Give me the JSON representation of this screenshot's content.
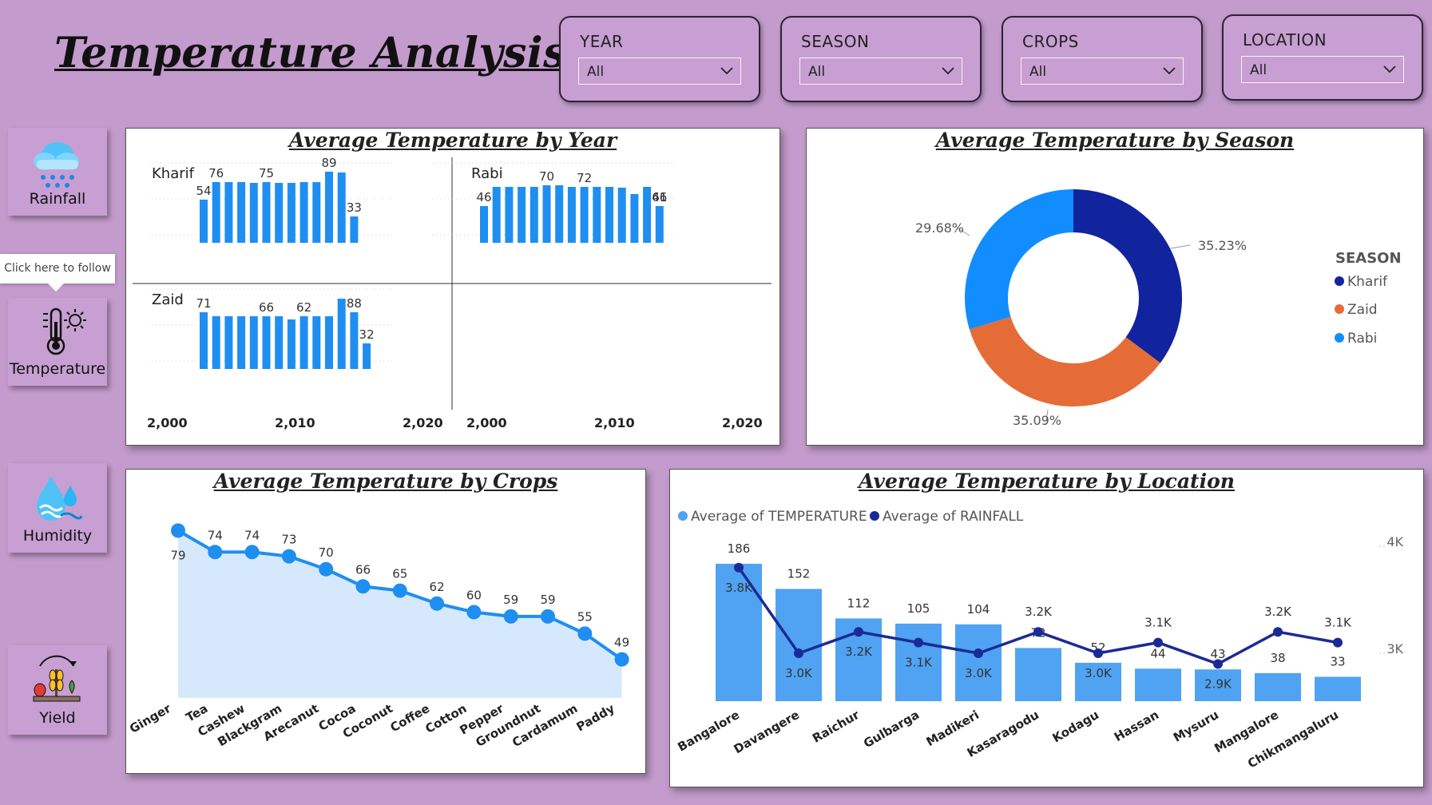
{
  "header": {
    "title": "Temperature Analysis"
  },
  "slicers": [
    {
      "label": "YEAR",
      "value": "All"
    },
    {
      "label": "SEASON",
      "value": "All"
    },
    {
      "label": "CROPS",
      "value": "All"
    },
    {
      "label": "LOCATION",
      "value": "All"
    }
  ],
  "nav": {
    "rainfall": "Rainfall",
    "temperature": "Temperature",
    "humidity": "Humidity",
    "yield": "Yield",
    "tooltip": "Click here to follow"
  },
  "colors": {
    "bar": "#1f8ef1",
    "kharif": "#12239e",
    "zaid": "#e66c37",
    "rabi": "#118dff",
    "loc_bar": "#4fa3f2",
    "loc_line": "#1b2a96",
    "area_fill": "#d6e9fc"
  },
  "chart_data": [
    {
      "type": "bar",
      "title": "Average Temperature by Year",
      "x_ticks": [
        "2,000",
        "2,010",
        "2,020"
      ],
      "facets": [
        {
          "name": "Kharif",
          "values": [
            54,
            76,
            76,
            76,
            75,
            76,
            75,
            75,
            76,
            76,
            89,
            88,
            33
          ],
          "labels": [
            {
              "i": 0,
              "t": "54"
            },
            {
              "i": 1,
              "t": "76"
            },
            {
              "i": 5,
              "t": "75"
            },
            {
              "i": 10,
              "t": "89"
            },
            {
              "i": 12,
              "t": "33"
            }
          ]
        },
        {
          "name": "Rabi",
          "values": [
            46,
            70,
            70,
            70,
            70,
            72,
            72,
            70,
            70,
            70,
            70,
            69,
            61,
            70,
            46
          ],
          "labels": [
            {
              "i": 0,
              "t": "46"
            },
            {
              "i": 5,
              "t": "70"
            },
            {
              "i": 8,
              "t": "72"
            },
            {
              "i": 15,
              "t": "61"
            },
            {
              "i": 17,
              "t": "46"
            }
          ]
        },
        {
          "name": "Zaid",
          "values": [
            71,
            66,
            66,
            66,
            66,
            66,
            66,
            62,
            66,
            66,
            66,
            88,
            71,
            32
          ],
          "labels": [
            {
              "i": 0,
              "t": "71"
            },
            {
              "i": 5,
              "t": "66"
            },
            {
              "i": 8,
              "t": "62"
            },
            {
              "i": 12,
              "t": "88"
            },
            {
              "i": 14,
              "t": "32"
            }
          ]
        }
      ]
    },
    {
      "type": "pie",
      "title": "Average Temperature by Season",
      "legend_title": "SEASON",
      "slices": [
        {
          "name": "Kharif",
          "value": 35.23,
          "label": "35.23%"
        },
        {
          "name": "Zaid",
          "value": 35.09,
          "label": "35.09%"
        },
        {
          "name": "Rabi",
          "value": 29.68,
          "label": "29.68%"
        }
      ],
      "legend": [
        "Kharif",
        "Zaid",
        "Rabi"
      ]
    },
    {
      "type": "area",
      "title": "Average Temperature by Crops",
      "categories": [
        "Ginger",
        "Tea",
        "Cashew",
        "Blackgram",
        "Arecanut",
        "Cocoa",
        "Coconut",
        "Coffee",
        "Cotton",
        "Pepper",
        "Groundnut",
        "Cardamum",
        "Paddy"
      ],
      "values": [
        79,
        74,
        74,
        73,
        70,
        66,
        65,
        62,
        60,
        59,
        59,
        55,
        49
      ]
    },
    {
      "type": "bar",
      "title": "Average Temperature by Location",
      "legend": [
        "Average of TEMPERATURE",
        "Average of RAINFALL"
      ],
      "categories": [
        "Bangalore",
        "Davangere",
        "Raichur",
        "Gulbarga",
        "Madikeri",
        "Kasaragodu",
        "Kodagu",
        "Hassan",
        "Mysuru",
        "Mangalore",
        "Chikmangaluru"
      ],
      "temperature": [
        186,
        152,
        112,
        105,
        104,
        72,
        52,
        44,
        43,
        38,
        33
      ],
      "rainfall": [
        3.8,
        3.0,
        3.2,
        3.1,
        3.0,
        3.2,
        3.0,
        3.1,
        2.9,
        3.2,
        3.1
      ],
      "rainfall_labels": [
        "3.8K",
        "3.0K",
        "3.2K",
        "3.1K",
        "3.0K",
        "3.2K",
        "3.0K",
        "3.1K",
        "2.9K",
        "3.2K",
        "3.1K"
      ],
      "y2_ticks": [
        "4K",
        "3K"
      ]
    }
  ]
}
